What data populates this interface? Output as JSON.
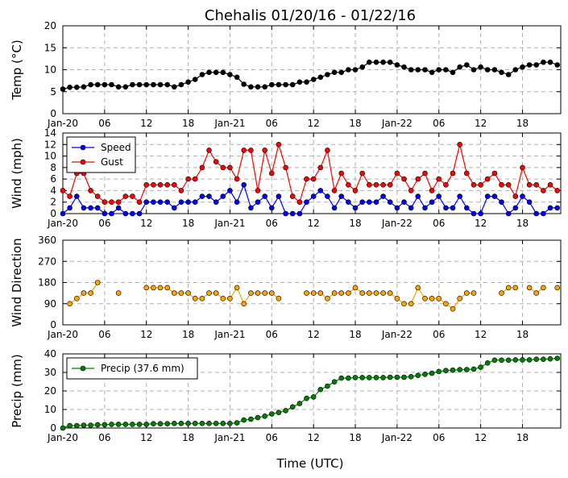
{
  "title": "Chehalis 01/20/16 - 01/22/16",
  "xlabel": "Time (UTC)",
  "x_tick_labels": [
    "Jan-20",
    "06",
    "12",
    "18",
    "Jan-21",
    "06",
    "12",
    "18",
    "Jan-22",
    "06",
    "12",
    "18"
  ],
  "x_tick_hours": [
    0,
    6,
    12,
    18,
    24,
    30,
    36,
    42,
    48,
    54,
    60,
    66
  ],
  "x_hours": [
    0,
    1,
    2,
    3,
    4,
    5,
    6,
    7,
    8,
    9,
    10,
    11,
    12,
    13,
    14,
    15,
    16,
    17,
    18,
    19,
    20,
    21,
    22,
    23,
    24,
    25,
    26,
    27,
    28,
    29,
    30,
    31,
    32,
    33,
    34,
    35,
    36,
    37,
    38,
    39,
    40,
    41,
    42,
    43,
    44,
    45,
    46,
    47,
    48,
    49,
    50,
    51,
    52,
    53,
    54,
    55,
    56,
    57,
    58,
    59,
    60,
    61,
    62,
    63,
    64,
    65,
    66,
    67,
    68,
    69,
    70,
    71
  ],
  "xlim": [
    0,
    71.5
  ],
  "colors": {
    "temp": "#000000",
    "speed": "#0000ff",
    "gust": "#ff0000",
    "direction": "#ffa500",
    "precip": "#008000"
  },
  "chart_data": [
    {
      "type": "line",
      "ylabel": "Temp (°C)",
      "ylim": [
        0,
        20
      ],
      "yticks": [
        0,
        5,
        10,
        15,
        20
      ],
      "grid": true,
      "series": [
        {
          "values": [
            5.6,
            6,
            6,
            6.1,
            6.6,
            6.6,
            6.6,
            6.6,
            6.1,
            6.1,
            6.6,
            6.6,
            6.6,
            6.6,
            6.6,
            6.6,
            6.1,
            6.6,
            7.2,
            7.8,
            8.9,
            9.4,
            9.4,
            9.4,
            8.9,
            8.3,
            6.7,
            6.1,
            6.1,
            6.1,
            6.6,
            6.6,
            6.6,
            6.6,
            7.2,
            7.2,
            7.8,
            8.3,
            8.9,
            9.4,
            9.4,
            10,
            10,
            10.6,
            11.7,
            11.7,
            11.7,
            11.7,
            11.1,
            10.6,
            10,
            10,
            10,
            9.4,
            10,
            10,
            9.4,
            10.6,
            11.1,
            10,
            10.6,
            10,
            10,
            9.4,
            8.9,
            10,
            10.6,
            11.1,
            11.1,
            11.7,
            11.7,
            11.1
          ]
        }
      ]
    },
    {
      "type": "line",
      "ylabel": "Wind (mph)",
      "ylim": [
        0,
        14
      ],
      "yticks": [
        0,
        2,
        4,
        6,
        8,
        10,
        12,
        14
      ],
      "grid": true,
      "legend": "upper-left",
      "series": [
        {
          "name": "Speed",
          "values": [
            0,
            1,
            3,
            1,
            1,
            1,
            0,
            0,
            1,
            0,
            0,
            0,
            2,
            2,
            2,
            2,
            1,
            2,
            2,
            2,
            3,
            3,
            2,
            3,
            4,
            2,
            5,
            1,
            2,
            3,
            1,
            3,
            0,
            0,
            0,
            2,
            3,
            4,
            3,
            1,
            3,
            2,
            1,
            2,
            2,
            2,
            3,
            2,
            1,
            2,
            1,
            3,
            1,
            2,
            3,
            1,
            1,
            3,
            1,
            0,
            0,
            3,
            3,
            2,
            0,
            1,
            3,
            2,
            0,
            0,
            1,
            1
          ]
        },
        {
          "name": "Gust",
          "values": [
            4,
            3,
            7,
            7,
            4,
            3,
            2,
            2,
            2,
            3,
            3,
            2,
            5,
            5,
            5,
            5,
            5,
            4,
            6,
            6,
            8,
            11,
            9,
            8,
            8,
            6,
            11,
            11,
            4,
            11,
            7,
            12,
            8,
            3,
            2,
            6,
            6,
            8,
            11,
            4,
            7,
            5,
            4,
            7,
            5,
            5,
            5,
            5,
            7,
            6,
            4,
            6,
            7,
            4,
            6,
            5,
            7,
            12,
            7,
            5,
            5,
            6,
            7,
            5,
            5,
            3,
            8,
            5,
            5,
            4,
            5,
            4
          ]
        }
      ]
    },
    {
      "type": "line",
      "ylabel": "Wind Direction",
      "ylim": [
        0,
        360
      ],
      "yticks": [
        0,
        90,
        180,
        270,
        360
      ],
      "grid": true,
      "series": [
        {
          "values": [
            null,
            90,
            112,
            135,
            135,
            180,
            null,
            null,
            135,
            null,
            null,
            null,
            158,
            158,
            158,
            158,
            135,
            135,
            135,
            112,
            112,
            135,
            135,
            112,
            112,
            158,
            90,
            135,
            135,
            135,
            135,
            112,
            null,
            null,
            null,
            135,
            135,
            135,
            112,
            135,
            135,
            135,
            158,
            135,
            135,
            135,
            135,
            135,
            112,
            90,
            90,
            158,
            112,
            112,
            112,
            90,
            68,
            112,
            135,
            135,
            null,
            null,
            null,
            135,
            158,
            158,
            null,
            158,
            135,
            158,
            null,
            158
          ]
        }
      ]
    },
    {
      "type": "line",
      "ylabel": "Precip (mm)",
      "ylim": [
        0,
        40
      ],
      "yticks": [
        0,
        10,
        20,
        30,
        40
      ],
      "grid": true,
      "legend": "upper-left",
      "series": [
        {
          "name": "Precip (37.6 mm)",
          "values": [
            0,
            1.3,
            1.3,
            1.5,
            1.5,
            1.8,
            1.8,
            2,
            2,
            2,
            2,
            2,
            2,
            2.3,
            2.3,
            2.3,
            2.5,
            2.5,
            2.5,
            2.5,
            2.5,
            2.5,
            2.5,
            2.5,
            2.5,
            2.8,
            4.3,
            4.8,
            5.6,
            6.4,
            7.6,
            8.4,
            9.4,
            11.4,
            13.2,
            16,
            16.8,
            20.8,
            22.6,
            24.9,
            26.9,
            26.9,
            27.2,
            27.2,
            27.2,
            27.2,
            27.2,
            27.4,
            27.4,
            27.4,
            27.7,
            28.4,
            29,
            29.5,
            30.5,
            31,
            31.2,
            31.5,
            31.5,
            31.8,
            32.8,
            35.1,
            36.6,
            36.6,
            36.6,
            36.8,
            36.8,
            36.8,
            37.1,
            37.1,
            37.3,
            37.6
          ]
        }
      ]
    }
  ]
}
